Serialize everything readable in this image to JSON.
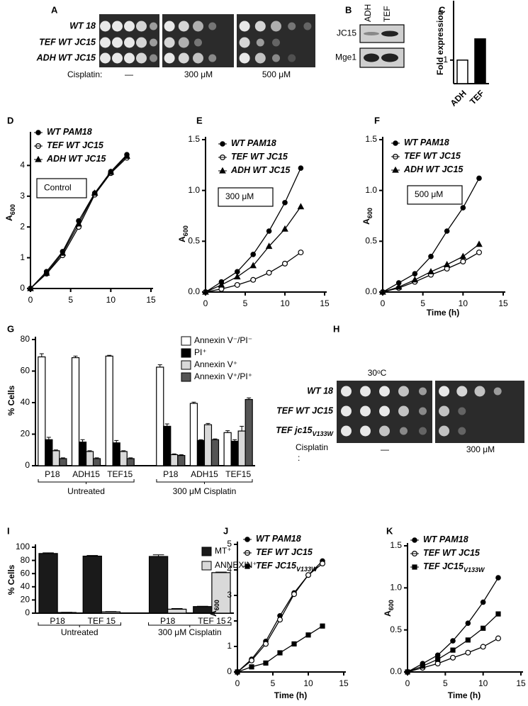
{
  "chart_data": [
    {
      "type": "bar",
      "label": "C",
      "ylabel": "Fold expression",
      "categories": [
        "ADH",
        "TEF"
      ],
      "values": [
        1,
        1.9
      ],
      "colors": [
        "#ffffff",
        "#000000"
      ],
      "ylim": [
        0,
        3.4
      ],
      "yticks": [
        1
      ]
    },
    {
      "type": "line",
      "label": "D",
      "ylabel": "A",
      "ylabel_sub": "600",
      "annotation": "Control",
      "x": [
        0,
        2,
        4,
        6,
        8,
        10,
        12
      ],
      "xlim": [
        0,
        15
      ],
      "xticks": [
        0,
        5,
        10,
        15
      ],
      "ylim": [
        0,
        5
      ],
      "yticks": [
        0,
        1,
        2,
        3,
        4
      ],
      "series": [
        {
          "name": "WT PAM18",
          "marker": "circle",
          "color": "#000000",
          "values": [
            0,
            0.55,
            1.2,
            2.2,
            3.1,
            3.8,
            4.35
          ]
        },
        {
          "name": "TEF WT JC15",
          "marker": "open-circle",
          "color": "#000000",
          "values": [
            0,
            0.48,
            1.08,
            2.0,
            3.05,
            3.75,
            4.25
          ]
        },
        {
          "name": "ADH WT JC15",
          "marker": "triangle",
          "color": "#000000",
          "values": [
            0,
            0.5,
            1.15,
            2.1,
            3.1,
            3.78,
            4.3
          ]
        }
      ]
    },
    {
      "type": "line",
      "label": "E",
      "ylabel": "A",
      "ylabel_sub": "600",
      "annotation": "300 μM",
      "x": [
        0,
        2,
        4,
        6,
        8,
        10,
        12
      ],
      "xlim": [
        0,
        15
      ],
      "xticks": [
        0,
        5,
        10,
        15
      ],
      "ylim": [
        0,
        1.5
      ],
      "yticks": [
        {
          "value": 0,
          "label": "0.0"
        },
        0.5,
        {
          "value": 1,
          "label": "1.0"
        },
        1.5
      ],
      "series": [
        {
          "name": "WT PAM18",
          "marker": "circle",
          "color": "#000000",
          "values": [
            0,
            0.1,
            0.2,
            0.37,
            0.6,
            0.88,
            1.22
          ]
        },
        {
          "name": "TEF WT JC15",
          "marker": "open-circle",
          "color": "#000000",
          "values": [
            0,
            0.03,
            0.07,
            0.12,
            0.19,
            0.28,
            0.39
          ]
        },
        {
          "name": "ADH WT JC15",
          "marker": "triangle",
          "color": "#000000",
          "values": [
            0,
            0.07,
            0.15,
            0.26,
            0.45,
            0.62,
            0.84
          ]
        }
      ]
    },
    {
      "type": "line",
      "label": "F",
      "ylabel": "A",
      "ylabel_sub": "600",
      "xlabel": "Time (h)",
      "annotation": "500 μM",
      "x": [
        0,
        2,
        4,
        6,
        8,
        10,
        12
      ],
      "xlim": [
        0,
        15
      ],
      "xticks": [
        0,
        5,
        10,
        15
      ],
      "ylim": [
        0,
        1.5
      ],
      "yticks": [
        {
          "value": 0,
          "label": "0.0"
        },
        0.5,
        {
          "value": 1,
          "label": "1.0"
        },
        1.5
      ],
      "series": [
        {
          "name": "WT PAM18",
          "marker": "circle",
          "color": "#000000",
          "values": [
            0,
            0.09,
            0.18,
            0.35,
            0.6,
            0.83,
            1.12
          ]
        },
        {
          "name": "TEF WT JC15",
          "marker": "open-circle",
          "color": "#000000",
          "values": [
            0,
            0.04,
            0.1,
            0.17,
            0.23,
            0.3,
            0.39
          ]
        },
        {
          "name": "ADH WT JC15",
          "marker": "triangle",
          "color": "#000000",
          "values": [
            0,
            0.05,
            0.12,
            0.2,
            0.27,
            0.35,
            0.47
          ]
        }
      ]
    },
    {
      "type": "grouped-bar",
      "label": "G",
      "ylabel": "% Cells",
      "ylim": [
        0,
        80
      ],
      "yticks": [
        0,
        20,
        40,
        60,
        80
      ],
      "groups": [
        {
          "name": "Untreated",
          "categories": [
            "P18",
            "ADH15",
            "TEF15"
          ]
        },
        {
          "name": "300 μM Cisplatin",
          "categories": [
            "P18",
            "ADH15",
            "TEF15"
          ]
        }
      ],
      "series": [
        {
          "name": "Annexin V⁻/PI⁻",
          "color": "#ffffff",
          "values": [
            69,
            68.5,
            69.5,
            62.5,
            39.5,
            21
          ],
          "errors": [
            2,
            1,
            0.5,
            1.5,
            0.8,
            1.2
          ]
        },
        {
          "name": "PI⁺",
          "color": "#000000",
          "values": [
            16.5,
            15,
            14.5,
            25,
            16,
            15.5
          ],
          "errors": [
            1.5,
            1.5,
            1.5,
            1.5,
            0.5,
            1
          ]
        },
        {
          "name": "Annexin V⁺",
          "color": "#d9d9d9",
          "values": [
            9.5,
            9,
            9,
            7,
            26,
            22
          ],
          "errors": [
            0.5,
            0.5,
            0.5,
            0.5,
            0.8,
            3
          ]
        },
        {
          "name": "Annexin V⁺/PI⁺",
          "color": "#555555",
          "values": [
            4.5,
            4.5,
            4.5,
            6.5,
            16.5,
            42
          ],
          "errors": [
            0.5,
            0.5,
            0.5,
            0.5,
            0.5,
            1
          ]
        }
      ]
    },
    {
      "type": "grouped-bar",
      "label": "I",
      "ylabel": "% Cells",
      "ylim": [
        0,
        100
      ],
      "yticks": [
        0,
        20,
        40,
        60,
        80,
        100
      ],
      "groups": [
        {
          "name": "Untreated",
          "categories": [
            "P18",
            "TEF 15"
          ]
        },
        {
          "name": "300 μM Cisplatin",
          "categories": [
            "P18",
            "TEF 15"
          ]
        }
      ],
      "series": [
        {
          "name": "MT⁺",
          "color": "#1a1a1a",
          "values": [
            90.5,
            86.5,
            86,
            10
          ],
          "errors": [
            1,
            1,
            2.5,
            0.5
          ]
        },
        {
          "name": "ANNEXIN⁺",
          "color": "#d9d9d9",
          "values": [
            1,
            2,
            6,
            61.5
          ],
          "errors": [
            0.3,
            0.5,
            1,
            0.8
          ]
        }
      ]
    },
    {
      "type": "line",
      "label": "J",
      "ylabel": "A",
      "ylabel_sub": "600",
      "xlabel": "Time (h)",
      "x": [
        0,
        2,
        4,
        6,
        8,
        10,
        12
      ],
      "xlim": [
        0,
        15
      ],
      "xticks": [
        0,
        5,
        10,
        15
      ],
      "ylim": [
        0,
        5
      ],
      "yticks": [
        0,
        1,
        2,
        3,
        4,
        5
      ],
      "series": [
        {
          "name": "WT PAM18",
          "marker": "circle",
          "color": "#000000",
          "values": [
            0,
            0.5,
            1.2,
            2.2,
            3.1,
            3.8,
            4.35
          ]
        },
        {
          "name": "TEF WT JC15",
          "marker": "open-circle",
          "color": "#000000",
          "values": [
            0,
            0.45,
            1.1,
            2.05,
            3.05,
            3.8,
            4.25
          ]
        },
        {
          "name": "TEF JC15",
          "name_sub": "V133W",
          "marker": "square",
          "color": "#000000",
          "values": [
            0,
            0.2,
            0.35,
            0.75,
            1.1,
            1.45,
            1.8
          ]
        }
      ]
    },
    {
      "type": "line",
      "label": "K",
      "ylabel": "A",
      "ylabel_sub": "600",
      "xlabel": "Time (h)",
      "x": [
        0,
        2,
        4,
        6,
        8,
        10,
        12
      ],
      "xlim": [
        0,
        15
      ],
      "xticks": [
        0,
        5,
        10,
        15
      ],
      "ylim": [
        0,
        1.5
      ],
      "yticks": [
        {
          "value": 0,
          "label": "0.0"
        },
        0.5,
        {
          "value": 1,
          "label": "1.0"
        },
        1.5
      ],
      "series": [
        {
          "name": "WT PAM18",
          "marker": "circle",
          "color": "#000000",
          "values": [
            0,
            0.1,
            0.2,
            0.37,
            0.58,
            0.83,
            1.12
          ]
        },
        {
          "name": "TEF WT JC15",
          "marker": "open-circle",
          "color": "#000000",
          "values": [
            0,
            0.05,
            0.1,
            0.17,
            0.23,
            0.3,
            0.4
          ]
        },
        {
          "name": "TEF JC15",
          "name_sub": "V133W",
          "marker": "square",
          "color": "#000000",
          "values": [
            0,
            0.07,
            0.15,
            0.26,
            0.38,
            0.52,
            0.69
          ]
        }
      ]
    }
  ],
  "images": [
    {
      "label": "A",
      "rows": [
        "WT 18",
        "TEF WT JC15",
        "ADH WT JC15"
      ],
      "condition_label": "Cisplatin:",
      "conditions": [
        "—",
        "300 μM",
        "500 μM"
      ]
    },
    {
      "label": "B",
      "lanes": [
        "ADH",
        "TEF"
      ],
      "rows": [
        "JC15",
        "Mge1"
      ]
    },
    {
      "label": "H",
      "title": "30ᵒC",
      "rows": [
        "WT 18",
        "TEF  WT JC15",
        {
          "text": "TEF jc15",
          "sub": "V133W"
        }
      ],
      "condition_label": "Cisplatin",
      "condition_suffix": ":",
      "conditions": [
        "—",
        "300 μM"
      ]
    }
  ]
}
